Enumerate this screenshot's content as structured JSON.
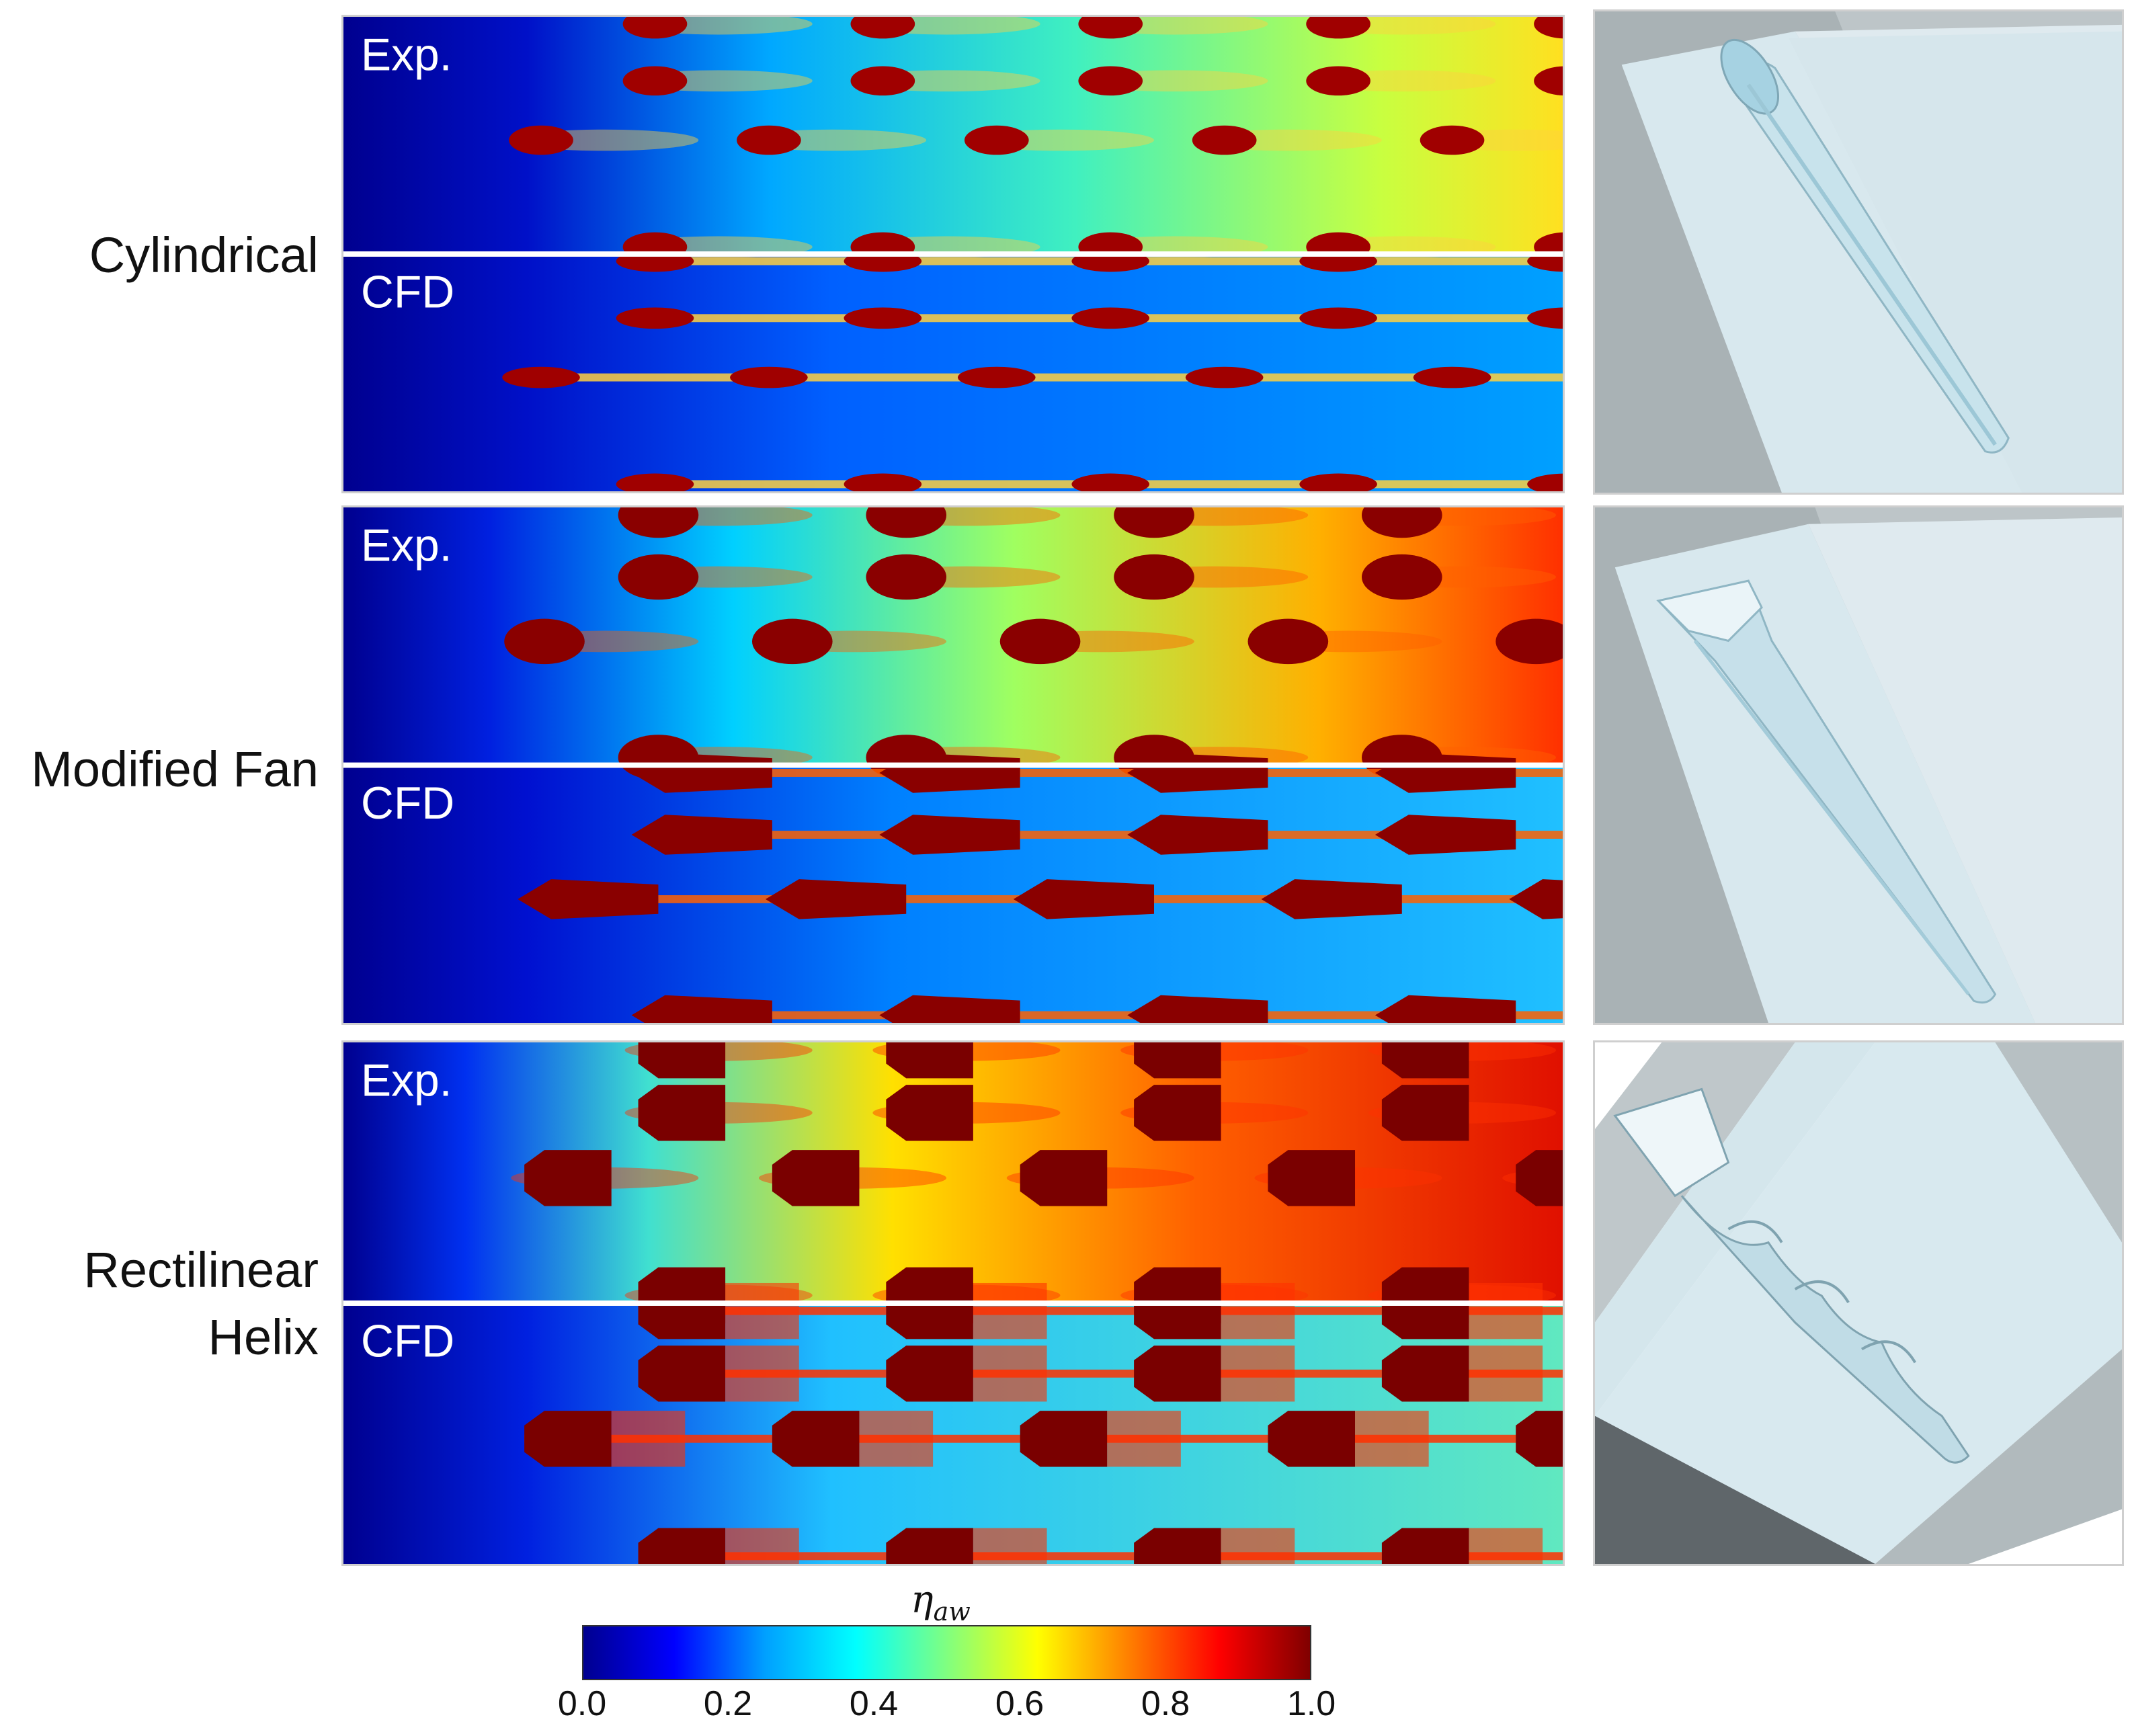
{
  "rows": [
    {
      "label": "Cylindrical",
      "exp_tag": "Exp.",
      "cfd_tag": "CFD",
      "shape": "cylindrical"
    },
    {
      "label": "Modified Fan",
      "exp_tag": "Exp.",
      "cfd_tag": "CFD",
      "shape": "fan"
    },
    {
      "label": "Rectilinear\nHelix",
      "exp_tag": "Exp.",
      "cfd_tag": "CFD",
      "shape": "helix"
    }
  ],
  "colorbar": {
    "symbol": "η",
    "subscript": "aw",
    "ticks": [
      "0.0",
      "0.2",
      "0.4",
      "0.6",
      "0.8",
      "1.0"
    ],
    "colors": [
      "#00008f",
      "#0000ff",
      "#00a0ff",
      "#00ffff",
      "#80ff80",
      "#ffff00",
      "#ff8000",
      "#ff0000",
      "#800000"
    ]
  }
}
